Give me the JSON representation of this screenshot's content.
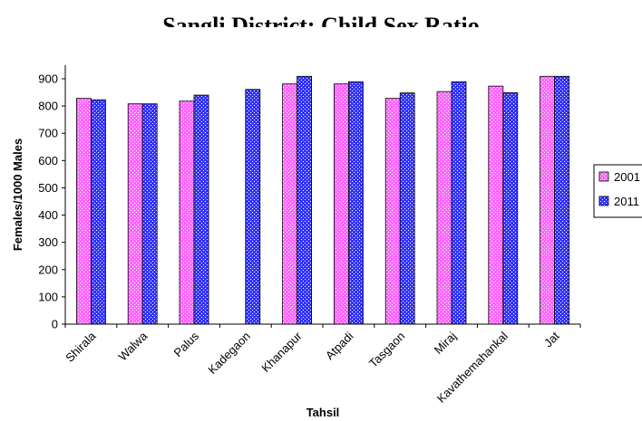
{
  "chart_data": {
    "type": "bar",
    "title": "Sangli District: Child Sex Ratio",
    "xlabel": "Tahsil",
    "ylabel": "Females/1000 Males",
    "ylim": [
      0,
      950
    ],
    "yticks": [
      0,
      100,
      200,
      300,
      400,
      500,
      600,
      700,
      800,
      900
    ],
    "grid": false,
    "legend_position": "right",
    "categories": [
      "Shirala",
      "Walwa",
      "Palus",
      "Kadegaon",
      "Khanapur",
      "Atpadi",
      "Tasgaon",
      "Miraj",
      "Kavathemahankal",
      "Jat"
    ],
    "series": [
      {
        "name": "2001",
        "color": "#ff66ff",
        "values": [
          828,
          808,
          818,
          null,
          881,
          881,
          828,
          853,
          873,
          909
        ]
      },
      {
        "name": "2011",
        "color": "#3333ff",
        "values": [
          823,
          808,
          840,
          861,
          909,
          889,
          848,
          889,
          849,
          909
        ]
      }
    ]
  }
}
